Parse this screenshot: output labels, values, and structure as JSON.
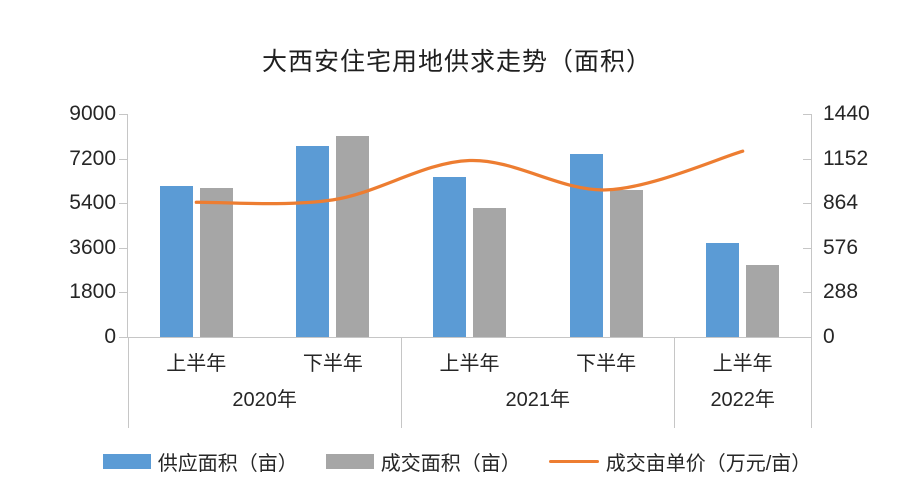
{
  "title": "大西安住宅用地供求走势（面积）",
  "colors": {
    "supply_bar": "#5B9BD5",
    "transaction_bar": "#A6A6A6",
    "price_line": "#ED7D31",
    "axis": "#C6C6C6",
    "text": "#262626"
  },
  "chart_data": {
    "type": "bar+line",
    "title": "大西安住宅用地供求走势（面积）",
    "categories": [
      "2020年上半年",
      "2020年下半年",
      "2021年上半年",
      "2021年下半年",
      "2022年上半年"
    ],
    "x_groups": [
      {
        "year": "2020年",
        "periods": [
          "上半年",
          "下半年"
        ]
      },
      {
        "year": "2021年",
        "periods": [
          "上半年",
          "下半年"
        ]
      },
      {
        "year": "2022年",
        "periods": [
          "上半年"
        ]
      }
    ],
    "series": [
      {
        "name": "供应面积（亩）",
        "type": "bar",
        "axis": "left",
        "color": "#5B9BD5",
        "values": [
          6100,
          7700,
          6450,
          7400,
          3800
        ]
      },
      {
        "name": "成交面积（亩）",
        "type": "bar",
        "axis": "left",
        "color": "#A6A6A6",
        "values": [
          6000,
          8100,
          5200,
          5950,
          2900
        ]
      },
      {
        "name": "成交亩单价（万元/亩）",
        "type": "line",
        "axis": "right",
        "color": "#ED7D31",
        "values": [
          870,
          885,
          1140,
          950,
          1200
        ]
      }
    ],
    "left_axis": {
      "min": 0,
      "max": 9000,
      "ticks": [
        0,
        1800,
        3600,
        5400,
        7200,
        9000
      ]
    },
    "right_axis": {
      "min": 0,
      "max": 1440,
      "ticks": [
        0,
        288,
        576,
        864,
        1152,
        1440
      ]
    },
    "grid": false,
    "legend_position": "bottom"
  }
}
